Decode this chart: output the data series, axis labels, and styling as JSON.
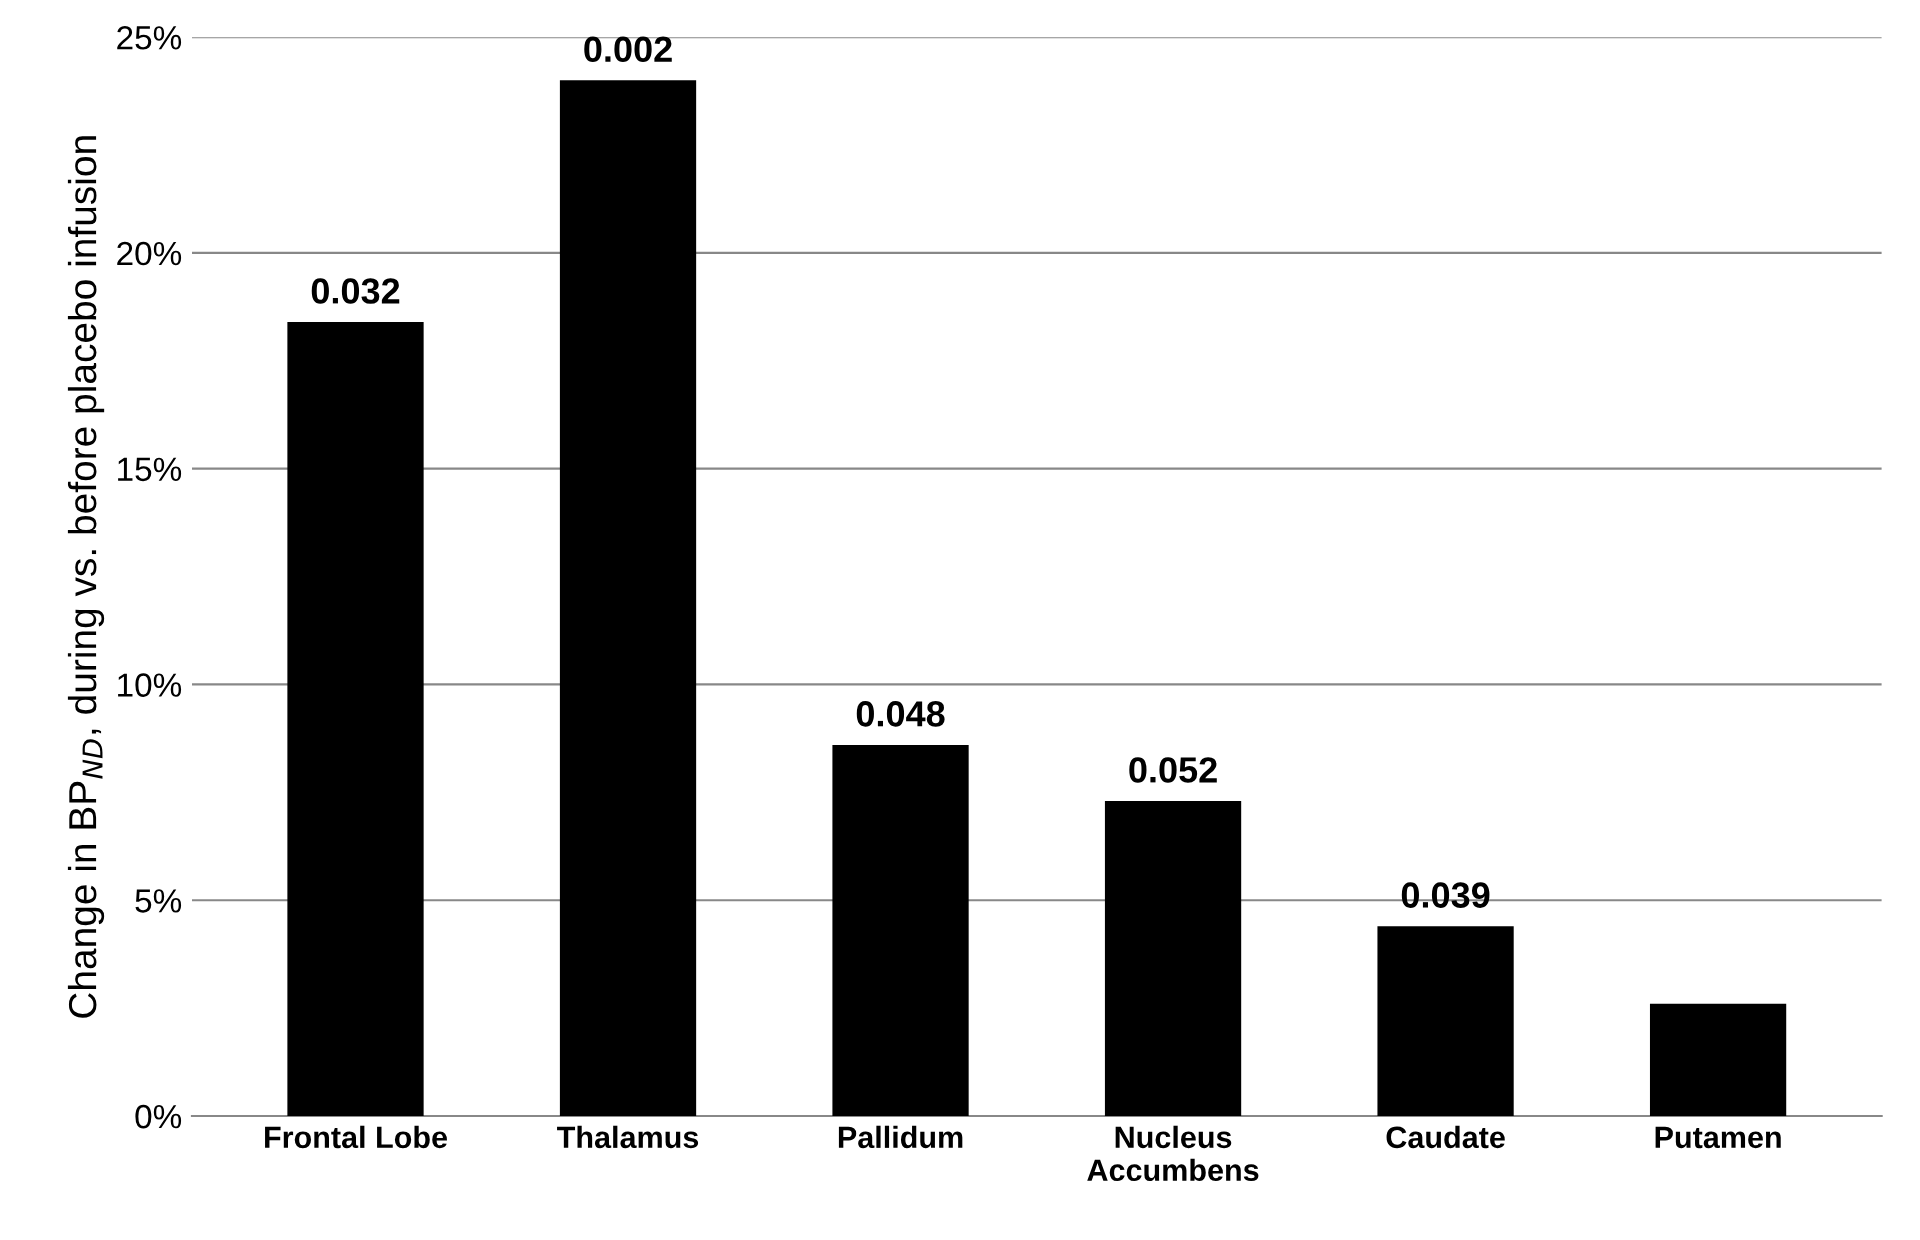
{
  "chart_data": {
    "type": "bar",
    "ylabel": "Change in BP$_{ND}$, during vs. before placebo infusion",
    "categories": [
      "Frontal Lobe",
      "Thalamus",
      "Pallidum",
      "Nucleus Accumbens",
      "Caudate",
      "Putamen"
    ],
    "values": [
      18.4,
      24.0,
      8.6,
      7.3,
      4.4,
      2.6
    ],
    "annotations": [
      {
        "text": "0.032",
        "x": "Frontal Lobe",
        "y": 18.4
      },
      {
        "text": "0.002",
        "x": "Thalamus",
        "y": 24.0
      },
      {
        "text": "0.048",
        "x": "Pallidum",
        "y": 8.6
      },
      {
        "text": "0.052",
        "x": "Nucleus Accumbens",
        "y": 7.3
      },
      {
        "text": "0.039",
        "x": "Caudate",
        "y": 4.4
      }
    ],
    "color": "#000000",
    "ylim": [
      0,
      25
    ],
    "yticks": [
      {
        "value": 0,
        "label": "0%"
      },
      {
        "value": 5,
        "label": "5%"
      },
      {
        "value": 10,
        "label": "10%"
      },
      {
        "value": 15,
        "label": "15%"
      },
      {
        "value": 20,
        "label": "20%"
      },
      {
        "value": 25,
        "label": "25%"
      }
    ],
    "grid": "y"
  }
}
